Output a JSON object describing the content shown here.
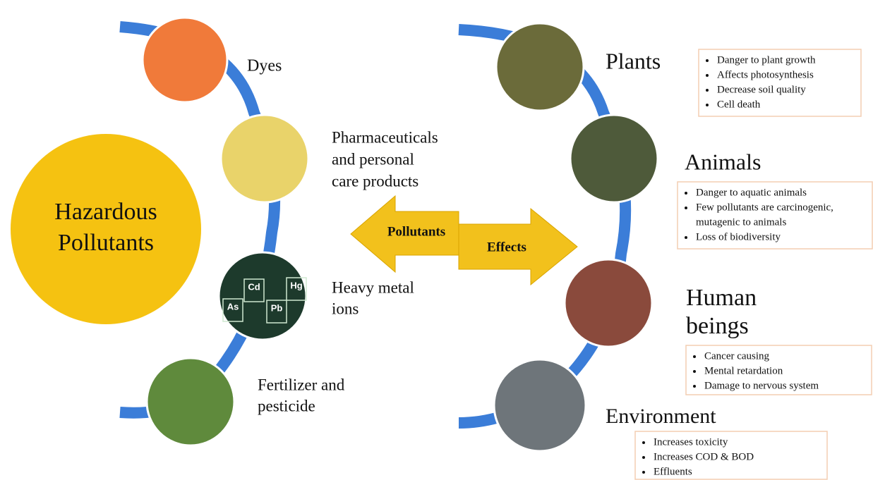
{
  "title": [
    "Hazardous",
    "Pollutants"
  ],
  "sources": [
    {
      "label": [
        "Dyes"
      ]
    },
    {
      "label": [
        "Pharmaceuticals",
        "and personal",
        "care products"
      ]
    },
    {
      "label": [
        "Heavy metal",
        "ions"
      ],
      "symbols": [
        "As",
        "Cd",
        "Pb",
        "Hg"
      ]
    },
    {
      "label": [
        "Fertilizer and",
        "pesticide"
      ]
    }
  ],
  "arrows": {
    "left": "Pollutants",
    "right": "Effects"
  },
  "effects": [
    {
      "label": [
        "Plants"
      ],
      "points": [
        "Danger to plant growth",
        "Affects photosynthesis",
        "Decrease soil quality",
        "Cell death"
      ]
    },
    {
      "label": [
        "Animals"
      ],
      "points": [
        "Danger to aquatic animals",
        "Few pollutants are carcinogenic,",
        "mutagenic to animals",
        "Loss of biodiversity"
      ]
    },
    {
      "label": [
        "Human",
        "beings"
      ],
      "points": [
        "Cancer causing",
        "Mental retardation",
        "Damage to nervous system"
      ]
    },
    {
      "label": [
        "Environment"
      ],
      "points": [
        "Increases toxicity",
        "Increases COD & BOD",
        "Effluents"
      ]
    }
  ]
}
